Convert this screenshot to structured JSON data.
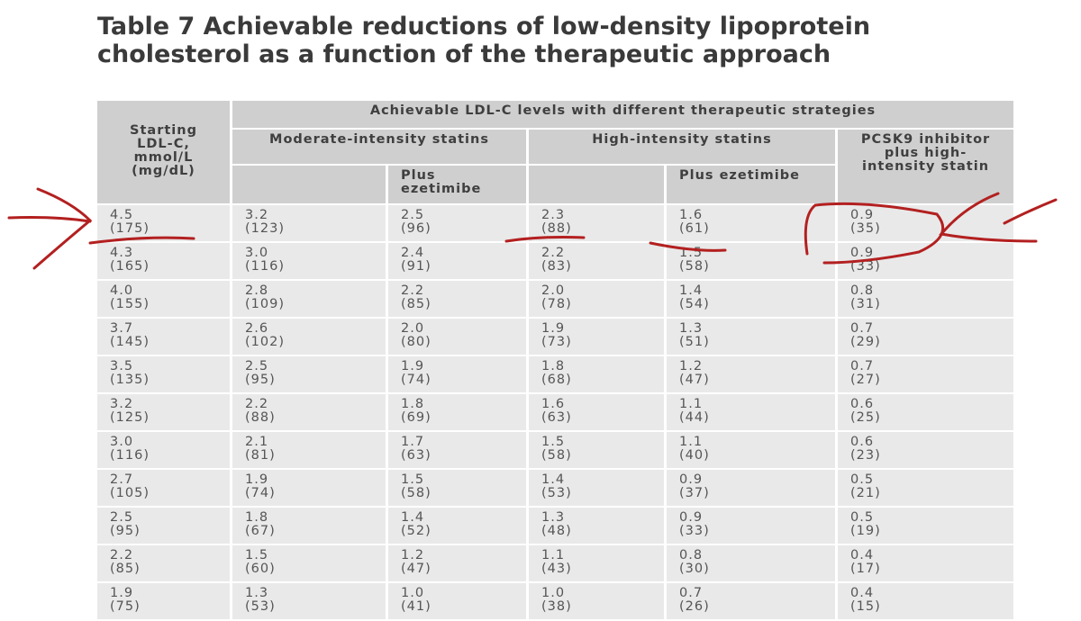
{
  "title": "Table 7 Achievable reductions of low-density lipoprotein cholesterol as a function of the therapeutic approach",
  "table": {
    "header": {
      "starting": "Starting LDL-C, mmol/L (mg/dL)",
      "group": "Achievable LDL-C levels with different therapeutic strategies",
      "moderate": "Moderate-intensity statins",
      "high": "High-intensity statins",
      "pcsk9": "PCSK9 inhibitor plus high-intensity statin",
      "moderate_plus": "Plus ezetimibe",
      "high_plus": "Plus ezetimibe"
    },
    "rows": [
      [
        [
          "4.5",
          "(175)"
        ],
        [
          "3.2",
          "(123)"
        ],
        [
          "2.5",
          "(96)"
        ],
        [
          "2.3",
          "(88)"
        ],
        [
          "1.6",
          "(61)"
        ],
        [
          "0.9",
          "(35)"
        ]
      ],
      [
        [
          "4.3",
          "(165)"
        ],
        [
          "3.0",
          "(116)"
        ],
        [
          "2.4",
          "(91)"
        ],
        [
          "2.2",
          "(83)"
        ],
        [
          "1.5",
          "(58)"
        ],
        [
          "0.9",
          "(33)"
        ]
      ],
      [
        [
          "4.0",
          "(155)"
        ],
        [
          "2.8",
          "(109)"
        ],
        [
          "2.2",
          "(85)"
        ],
        [
          "2.0",
          "(78)"
        ],
        [
          "1.4",
          "(54)"
        ],
        [
          "0.8",
          "(31)"
        ]
      ],
      [
        [
          "3.7",
          "(145)"
        ],
        [
          "2.6",
          "(102)"
        ],
        [
          "2.0",
          "(80)"
        ],
        [
          "1.9",
          "(73)"
        ],
        [
          "1.3",
          "(51)"
        ],
        [
          "0.7",
          "(29)"
        ]
      ],
      [
        [
          "3.5",
          "(135)"
        ],
        [
          "2.5",
          "(95)"
        ],
        [
          "1.9",
          "(74)"
        ],
        [
          "1.8",
          "(68)"
        ],
        [
          "1.2",
          "(47)"
        ],
        [
          "0.7",
          "(27)"
        ]
      ],
      [
        [
          "3.2",
          "(125)"
        ],
        [
          "2.2",
          "(88)"
        ],
        [
          "1.8",
          "(69)"
        ],
        [
          "1.6",
          "(63)"
        ],
        [
          "1.1",
          "(44)"
        ],
        [
          "0.6",
          "(25)"
        ]
      ],
      [
        [
          "3.0",
          "(116)"
        ],
        [
          "2.1",
          "(81)"
        ],
        [
          "1.7",
          "(63)"
        ],
        [
          "1.5",
          "(58)"
        ],
        [
          "1.1",
          "(40)"
        ],
        [
          "0.6",
          "(23)"
        ]
      ],
      [
        [
          "2.7",
          "(105)"
        ],
        [
          "1.9",
          "(74)"
        ],
        [
          "1.5",
          "(58)"
        ],
        [
          "1.4",
          "(53)"
        ],
        [
          "0.9",
          "(37)"
        ],
        [
          "0.5",
          "(21)"
        ]
      ],
      [
        [
          "2.5",
          "(95)"
        ],
        [
          "1.8",
          "(67)"
        ],
        [
          "1.4",
          "(52)"
        ],
        [
          "1.3",
          "(48)"
        ],
        [
          "0.9",
          "(33)"
        ],
        [
          "0.5",
          "(19)"
        ]
      ],
      [
        [
          "2.2",
          "(85)"
        ],
        [
          "1.5",
          "(60)"
        ],
        [
          "1.2",
          "(47)"
        ],
        [
          "1.1",
          "(43)"
        ],
        [
          "0.8",
          "(30)"
        ],
        [
          "0.4",
          "(17)"
        ]
      ],
      [
        [
          "1.9",
          "(75)"
        ],
        [
          "1.3",
          "(53)"
        ],
        [
          "1.0",
          "(41)"
        ],
        [
          "1.0",
          "(38)"
        ],
        [
          "0.7",
          "(26)"
        ],
        [
          "0.4",
          "(15)"
        ]
      ]
    ]
  }
}
